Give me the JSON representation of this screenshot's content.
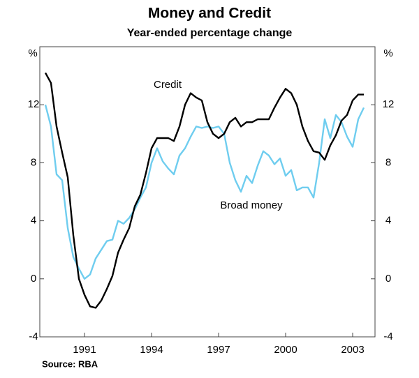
{
  "chart_data": {
    "type": "line",
    "title": "Money and Credit",
    "subtitle": "Year-ended percentage change",
    "y_unit": "%",
    "source": "Source: RBA",
    "annotations": [
      "Credit",
      "Broad money"
    ],
    "x": [
      1989.25,
      1989.5,
      1989.75,
      1990,
      1990.25,
      1990.5,
      1990.75,
      1991,
      1991.25,
      1991.5,
      1991.75,
      1992,
      1992.25,
      1992.5,
      1992.75,
      1993,
      1993.25,
      1993.5,
      1993.75,
      1994,
      1994.25,
      1994.5,
      1994.75,
      1995,
      1995.25,
      1995.5,
      1995.75,
      1996,
      1996.25,
      1996.5,
      1996.75,
      1997,
      1997.25,
      1997.5,
      1997.75,
      1998,
      1998.25,
      1998.5,
      1998.75,
      1999,
      1999.25,
      1999.5,
      1999.75,
      2000,
      2000.25,
      2000.5,
      2000.75,
      2001,
      2001.25,
      2001.5,
      2001.75,
      2002,
      2002.25,
      2002.5,
      2002.75,
      2003,
      2003.25,
      2003.5
    ],
    "series": [
      {
        "name": "Credit",
        "color": "#000000",
        "values": [
          14.2,
          13.5,
          10.5,
          8.7,
          7,
          3,
          0,
          -1.1,
          -1.9,
          -2,
          -1.5,
          -0.7,
          0.2,
          1.8,
          2.7,
          3.5,
          5,
          5.8,
          7.3,
          9,
          9.7,
          9.7,
          9.7,
          9.5,
          10.5,
          12,
          12.8,
          12.5,
          12.3,
          10.8,
          10,
          9.7,
          10,
          10.8,
          11.1,
          10.5,
          10.8,
          10.8,
          11,
          11,
          11,
          11.8,
          12.5,
          13.1,
          12.8,
          12,
          10.5,
          9.5,
          8.8,
          8.7,
          8.2,
          9.2,
          9.9,
          10.9,
          11.3,
          12.3,
          12.7,
          12.7
        ]
      },
      {
        "name": "Broad money",
        "color": "#6fcdef",
        "values": [
          12,
          10.5,
          7.2,
          6.8,
          3.5,
          1.5,
          0.7,
          0,
          0.3,
          1.4,
          2,
          2.6,
          2.7,
          4,
          3.8,
          4.2,
          4.8,
          5.6,
          6.3,
          8,
          9,
          8.1,
          7.6,
          7.2,
          8.5,
          9,
          9.8,
          10.5,
          10.4,
          10.5,
          10.4,
          10.5,
          10,
          8,
          6.8,
          6,
          7.1,
          6.6,
          7.8,
          8.8,
          8.5,
          7.9,
          8.3,
          7.1,
          7.5,
          6.1,
          6.3,
          6.3,
          5.6,
          8,
          11,
          9.7,
          11.3,
          10.8,
          9.8,
          9.1,
          11,
          11.8
        ]
      }
    ],
    "xlim": [
      1989,
      2004
    ],
    "xticks": [
      1991,
      1994,
      1997,
      2000,
      2003
    ],
    "ylim": [
      -4,
      16
    ],
    "yticks": [
      -4,
      0,
      4,
      8,
      12
    ]
  }
}
